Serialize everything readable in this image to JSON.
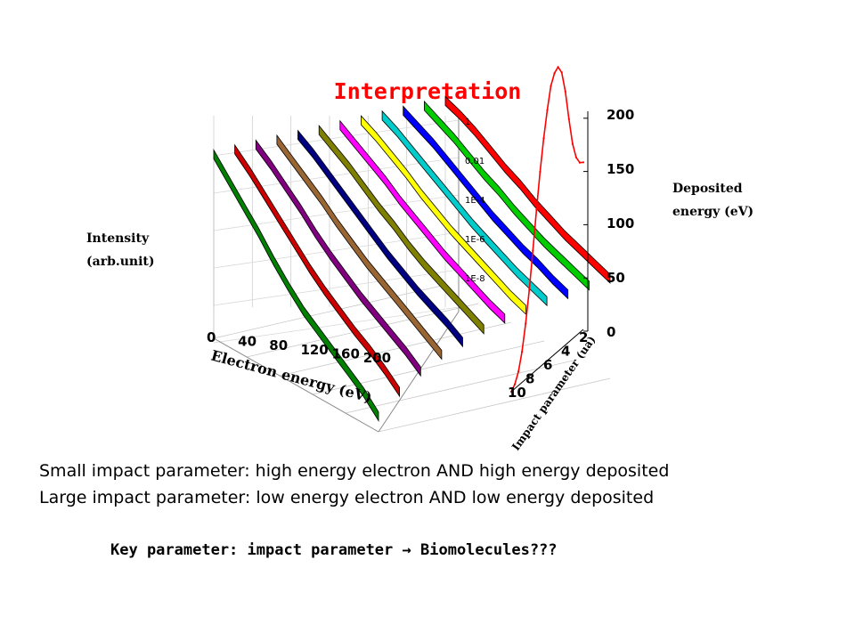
{
  "slide": {
    "title": "Interpretation",
    "line1": "Small impact parameter: high energy electron AND high energy deposited",
    "line2": "Large impact parameter: low energy electron AND low energy deposited",
    "key_prefix": "Key parameter: impact parameter ",
    "arrow_glyph": "→",
    "key_suffix": " Biomolecules???"
  },
  "chart_data": [
    {
      "type": "line",
      "projection": "3d-waterfall",
      "xlabel": "Electron energy (eV)",
      "ylabel": "Intensity (arb.unit)",
      "xticks": [
        "0",
        "40",
        "80",
        "120",
        "160",
        "200"
      ],
      "yticks": [
        "1",
        "0.01",
        "1E-4",
        "1E-6",
        "1E-8"
      ],
      "y_scale": "log",
      "xlim": [
        0,
        200
      ],
      "ylim": [
        1e-09,
        1
      ],
      "grid": true,
      "series_colors": [
        "#008000",
        "#cc0000",
        "#800080",
        "#996633",
        "#000080",
        "#808000",
        "#ff00ff",
        "#ffff00",
        "#00cccc",
        "#0000ff",
        "#00cc00",
        "#ff0000"
      ],
      "series": [
        {
          "values_log10": [
            0.3,
            -0.6,
            -1.5,
            -2.4,
            -3.4,
            -4.3,
            -5.1,
            -5.7,
            -6.3,
            -6.9,
            -7.5,
            -8.3
          ]
        },
        {
          "values_log10": [
            0.3,
            -0.4,
            -1.2,
            -2.0,
            -2.8,
            -3.6,
            -4.3,
            -4.9,
            -5.5,
            -6.0,
            -6.6,
            -7.3
          ]
        },
        {
          "values_log10": [
            0.3,
            -0.3,
            -1.0,
            -1.7,
            -2.5,
            -3.2,
            -3.8,
            -4.4,
            -4.9,
            -5.4,
            -5.9,
            -6.5
          ]
        },
        {
          "values_log10": [
            0.3,
            -0.3,
            -0.9,
            -1.5,
            -2.2,
            -2.8,
            -3.4,
            -3.9,
            -4.4,
            -4.9,
            -5.4,
            -5.9
          ]
        },
        {
          "values_log10": [
            0.3,
            -0.2,
            -0.8,
            -1.4,
            -2.0,
            -2.6,
            -3.2,
            -3.7,
            -4.2,
            -4.6,
            -5.0,
            -5.5
          ]
        },
        {
          "values_log10": [
            0.3,
            -0.2,
            -0.7,
            -1.3,
            -1.9,
            -2.4,
            -3.0,
            -3.5,
            -3.9,
            -4.3,
            -4.7,
            -5.1
          ]
        },
        {
          "values_log10": [
            0.3,
            -0.2,
            -0.7,
            -1.2,
            -1.8,
            -2.3,
            -2.8,
            -3.3,
            -3.7,
            -4.1,
            -4.5,
            -4.8
          ]
        },
        {
          "values_log10": [
            0.3,
            -0.1,
            -0.6,
            -1.1,
            -1.7,
            -2.2,
            -2.7,
            -3.1,
            -3.5,
            -3.9,
            -4.3,
            -4.6
          ]
        },
        {
          "values_log10": [
            0.3,
            -0.1,
            -0.6,
            -1.1,
            -1.6,
            -2.1,
            -2.6,
            -3.0,
            -3.4,
            -3.8,
            -4.1,
            -4.4
          ]
        },
        {
          "values_log10": [
            0.3,
            -0.1,
            -0.5,
            -1.0,
            -1.5,
            -2.0,
            -2.5,
            -2.9,
            -3.3,
            -3.6,
            -4.0,
            -4.3
          ]
        },
        {
          "values_log10": [
            0.3,
            -0.1,
            -0.5,
            -1.0,
            -1.5,
            -1.9,
            -2.4,
            -2.8,
            -3.2,
            -3.5,
            -3.8,
            -4.1
          ]
        },
        {
          "values_log10": [
            0.3,
            0.0,
            -0.4,
            -0.9,
            -1.4,
            -1.8,
            -2.3,
            -2.7,
            -3.1,
            -3.4,
            -3.7,
            -4.0
          ]
        }
      ]
    },
    {
      "type": "line",
      "projection": "3d-side-wall",
      "xlabel": "Impact parameter (ua)",
      "ylabel": "Deposited energy (eV)",
      "xticks": [
        "10",
        "8",
        "6",
        "4",
        "2"
      ],
      "yticks": [
        "0",
        "50",
        "100",
        "150",
        "200"
      ],
      "xlim": [
        10,
        0
      ],
      "ylim": [
        0,
        200
      ],
      "color": "#ff0000",
      "x": [
        10,
        9.5,
        9,
        8.5,
        8,
        7.5,
        7,
        6.5,
        6,
        5.5,
        5,
        4.5,
        4,
        3.5,
        3,
        2.5,
        2,
        1.5,
        1,
        0.5,
        0
      ],
      "y": [
        0,
        3,
        10,
        22,
        40,
        62,
        88,
        115,
        140,
        162,
        180,
        195,
        202,
        204,
        198,
        182,
        160,
        140,
        128,
        122,
        120
      ]
    }
  ]
}
